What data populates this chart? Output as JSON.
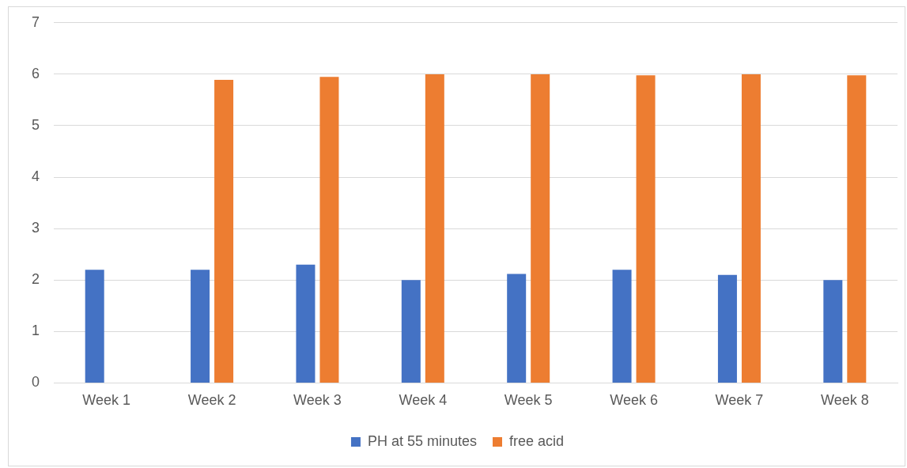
{
  "chart_data": {
    "type": "bar",
    "categories": [
      "Week 1",
      "Week 2",
      "Week 3",
      "Week 4",
      "Week 5",
      "Week 6",
      "Week 7",
      "Week 8"
    ],
    "series": [
      {
        "name": "PH at 55 minutes",
        "color": "#4472c4",
        "values": [
          2.2,
          2.2,
          2.3,
          2.0,
          2.12,
          2.2,
          2.1,
          2.0
        ]
      },
      {
        "name": "free acid",
        "color": "#ed7d31",
        "values": [
          null,
          5.89,
          5.95,
          6.0,
          6.0,
          5.98,
          6.0,
          5.98
        ]
      }
    ],
    "ylim": [
      0,
      7
    ],
    "yticks": [
      0,
      1,
      2,
      3,
      4,
      5,
      6,
      7
    ],
    "grid": "y",
    "legend": "bottom"
  }
}
